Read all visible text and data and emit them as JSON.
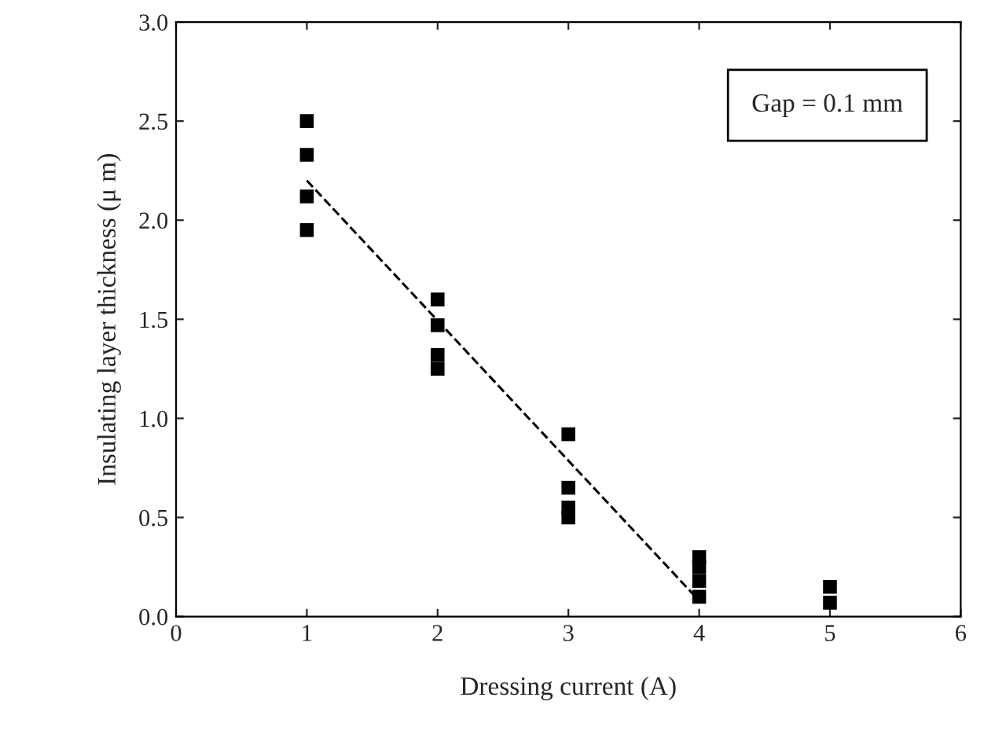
{
  "chart_data": {
    "type": "scatter",
    "xlabel": "Dressing current (A)",
    "ylabel": "Insulating layer thickness (μ m)",
    "xlim": [
      0,
      6
    ],
    "xticks": [
      0,
      1,
      2,
      3,
      4,
      5,
      6
    ],
    "ylim": [
      0,
      3.0
    ],
    "yticks": [
      {
        "value": 0,
        "label": "0.0"
      },
      {
        "value": 0.5,
        "label": "0.5"
      },
      {
        "value": 1.0,
        "label": "1.0"
      },
      {
        "value": 1.5,
        "label": "1.5"
      },
      {
        "value": 2.0,
        "label": "2.0"
      },
      {
        "value": 2.5,
        "label": "2.5"
      },
      {
        "value": 3.0,
        "label": "3.0"
      }
    ],
    "marker": "square",
    "grid": false,
    "legend": false,
    "annotations": [
      "Gap = 0.1 mm"
    ],
    "series": [
      {
        "color": "#000000",
        "x": [
          1,
          1,
          1,
          1,
          2,
          2,
          2,
          2,
          3,
          3,
          3,
          3,
          4,
          4,
          4,
          4,
          5,
          5
        ],
        "values": [
          2.5,
          2.33,
          2.12,
          1.95,
          1.6,
          1.47,
          1.32,
          1.25,
          0.92,
          0.65,
          0.55,
          0.5,
          0.3,
          0.25,
          0.18,
          0.1,
          0.15,
          0.07
        ]
      },
      {
        "type": "line",
        "color": "#000000",
        "line_style": "dashed",
        "marker": "none",
        "x": [
          1,
          4
        ],
        "values": [
          2.2,
          0.08
        ]
      }
    ]
  }
}
